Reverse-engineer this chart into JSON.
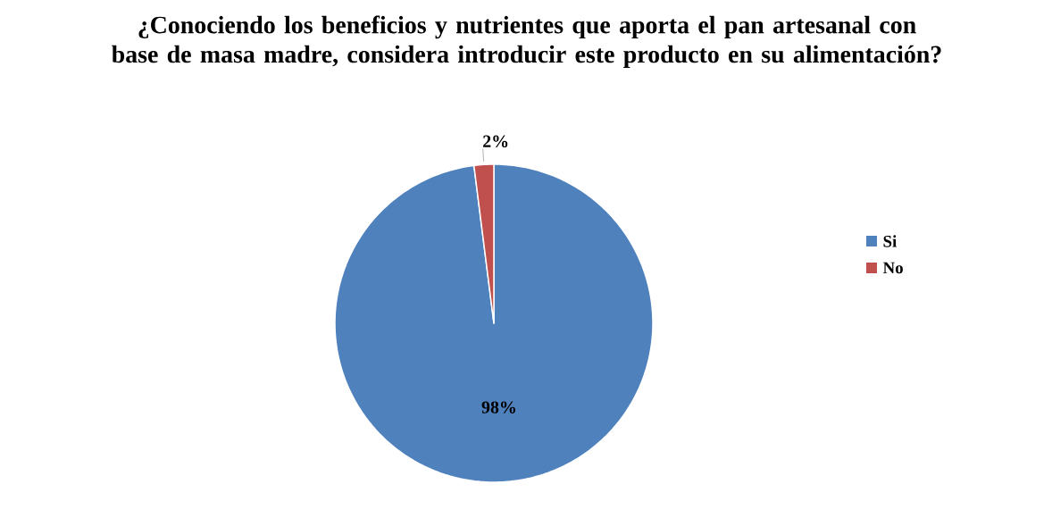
{
  "chart_data": {
    "type": "pie",
    "title": "¿Conociendo los beneficios y nutrientes que aporta el pan artesanal con base de masa madre, considera introducir este producto en su alimentación?",
    "categories": [
      "Si",
      "No"
    ],
    "values": [
      98,
      2
    ],
    "value_labels": [
      "98%",
      "2%"
    ],
    "colors": [
      "#4f81bd",
      "#c0504d"
    ],
    "legend": "right"
  }
}
